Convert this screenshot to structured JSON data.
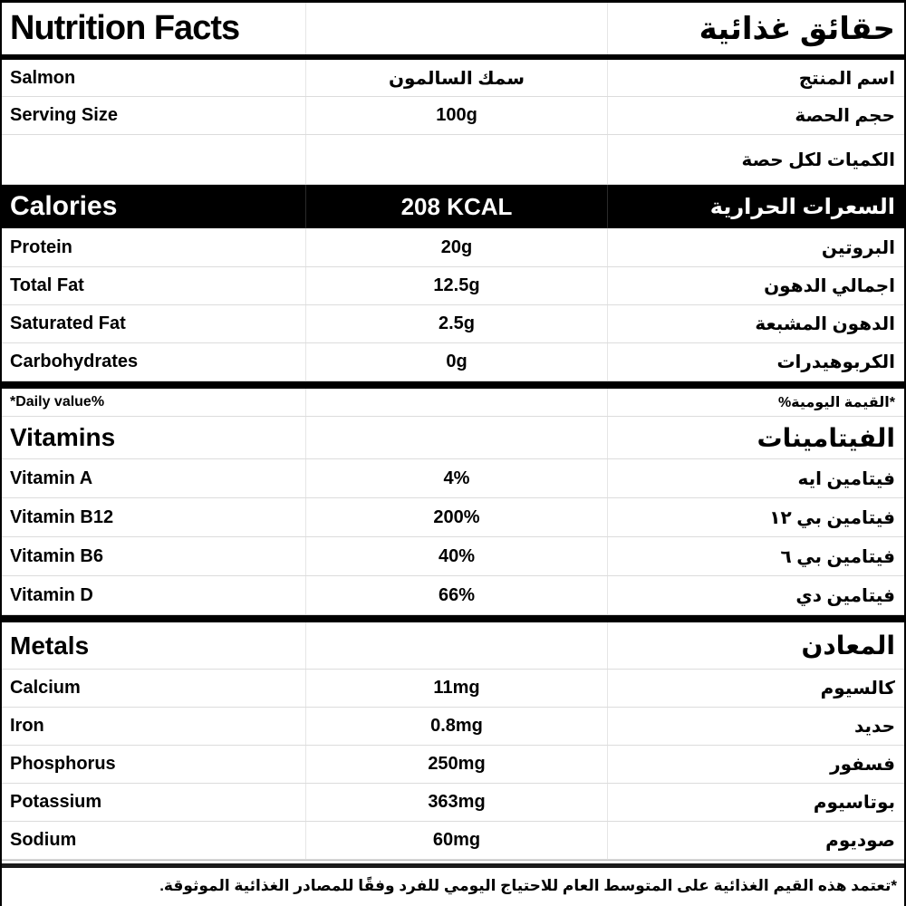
{
  "header": {
    "title_en": "Nutrition Facts",
    "title_ar": "حقائق غذائية"
  },
  "info_rows": [
    {
      "en": "Salmon",
      "value": "سمك السالمون",
      "ar": "اسم المنتج"
    },
    {
      "en": "Serving Size",
      "value": "100g",
      "ar": "حجم الحصة"
    },
    {
      "en": "",
      "value": "",
      "ar": "الكميات لكل حصة"
    }
  ],
  "calories": {
    "en": "Calories",
    "value": "208 KCAL",
    "ar": "السعرات الحرارية"
  },
  "macros": [
    {
      "en": "Protein",
      "value": "20g",
      "ar": "البروتين"
    },
    {
      "en": "Total Fat",
      "value": "12.5g",
      "ar": "اجمالي الدهون"
    },
    {
      "en": "Saturated Fat",
      "value": "2.5g",
      "ar": "الدهون المشبعة"
    },
    {
      "en": "Carbohydrates",
      "value": "0g",
      "ar": "الكربوهيدرات"
    }
  ],
  "daily_value_note": {
    "en": "*Daily value%",
    "ar": "*القيمة اليومية%"
  },
  "vitamins": {
    "heading_en": "Vitamins",
    "heading_ar": "الفيتامينات",
    "rows": [
      {
        "en": "Vitamin A",
        "value": "4%",
        "ar": "فيتامين ايه"
      },
      {
        "en": "Vitamin B12",
        "value": "200%",
        "ar": "فيتامين بي ١٢"
      },
      {
        "en": "Vitamin B6",
        "value": "40%",
        "ar": "فيتامين بي ٦"
      },
      {
        "en": "Vitamin D",
        "value": "66%",
        "ar": "فيتامين دي"
      }
    ]
  },
  "metals": {
    "heading_en": "Metals",
    "heading_ar": "المعادن",
    "rows": [
      {
        "en": "Calcium",
        "value": "11mg",
        "ar": "كالسيوم"
      },
      {
        "en": "Iron",
        "value": "0.8mg",
        "ar": "حديد"
      },
      {
        "en": "Phosphorus",
        "value": "250mg",
        "ar": "فسفور"
      },
      {
        "en": "Potassium",
        "value": "363mg",
        "ar": "بوتاسيوم"
      },
      {
        "en": "Sodium",
        "value": "60mg",
        "ar": "صوديوم"
      }
    ]
  },
  "footer": {
    "note_ar": "*تعتمد هذه القيم الغذائية على المتوسط العام للاحتياج اليومي للفرد وفقًا للمصادر الغذائية الموثوقة."
  },
  "colors": {
    "text": "#000000",
    "bar_background": "#000000",
    "bar_text": "#ffffff",
    "row_separator": "#dcdcdc"
  }
}
